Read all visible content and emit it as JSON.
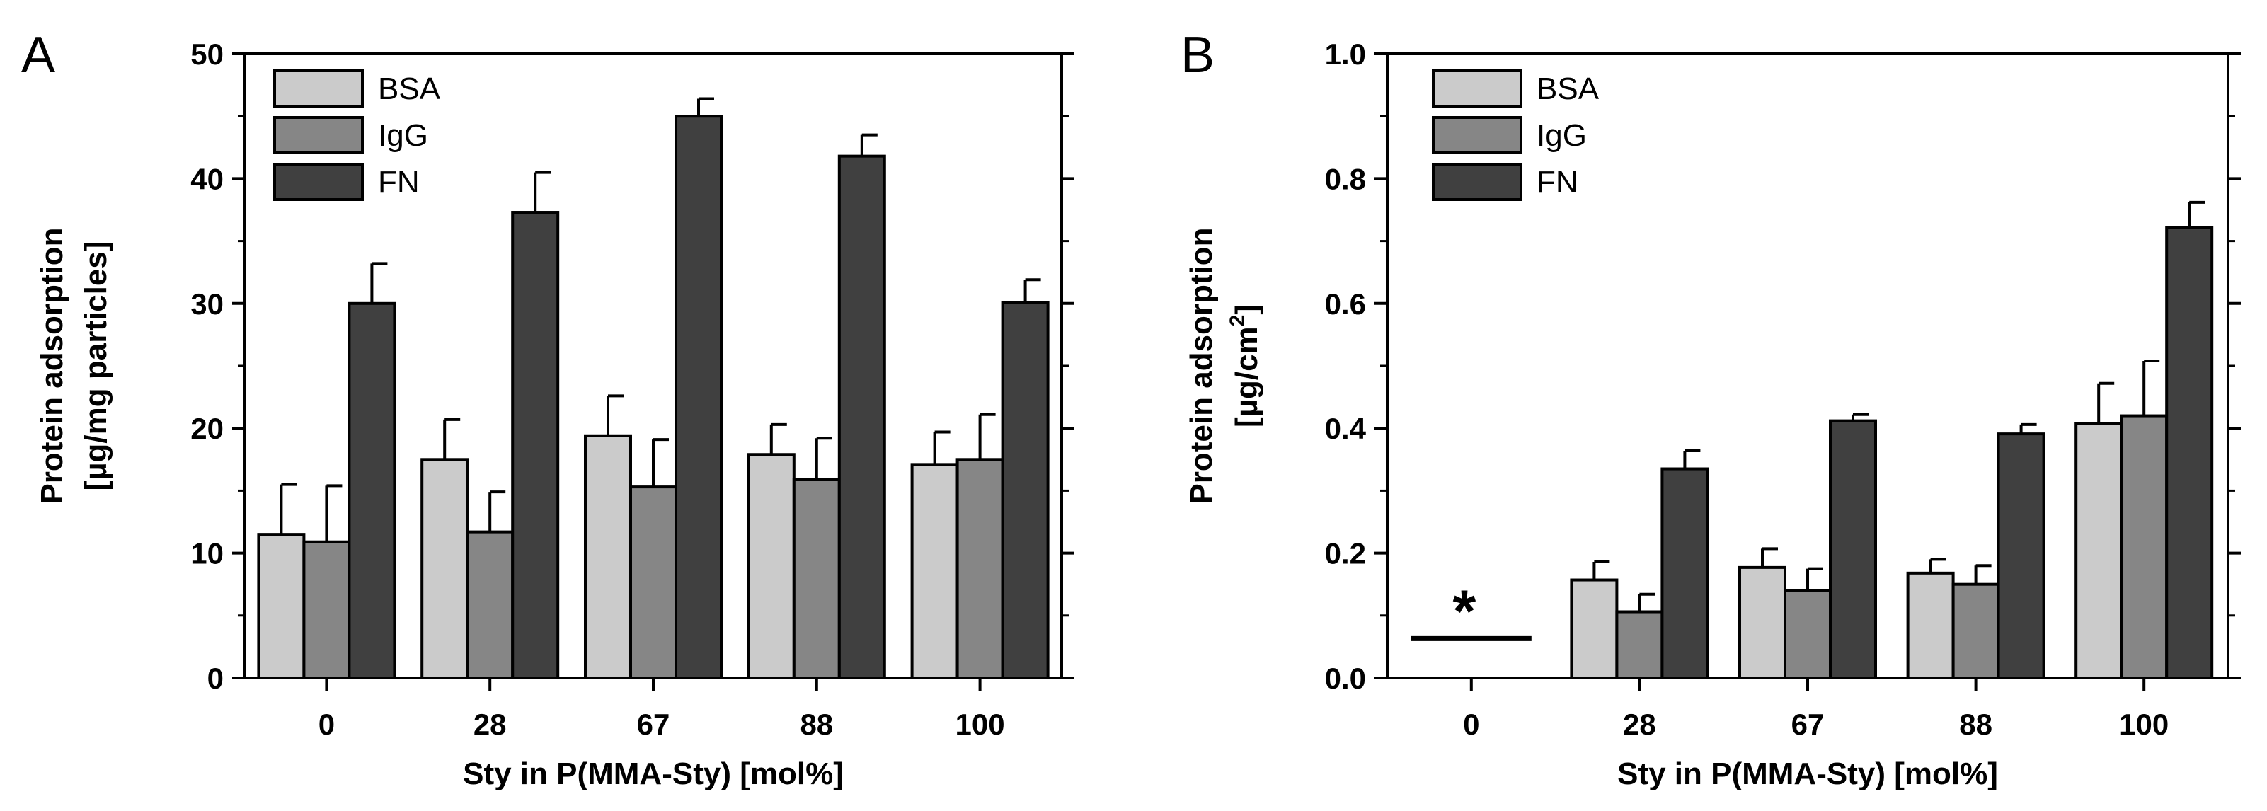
{
  "chart_data": [
    {
      "type": "bar",
      "panel_label": "A",
      "title": "",
      "xlabel": "Sty in P(MMA-Sty) [mol%]",
      "ylabel_lines": [
        "Protein adsorption",
        "[µg/mg particles]"
      ],
      "ylim": [
        0,
        50
      ],
      "yticks": [
        0,
        10,
        20,
        30,
        40,
        50
      ],
      "ytick_labels": [
        "0",
        "10",
        "20",
        "30",
        "40",
        "50"
      ],
      "categories": [
        "0",
        "28",
        "67",
        "88",
        "100"
      ],
      "series": [
        {
          "name": "BSA",
          "color": "#cbcbcb",
          "values": [
            11.5,
            17.5,
            19.4,
            17.9,
            17.1
          ],
          "errors": [
            4.0,
            3.2,
            3.2,
            2.4,
            2.6
          ]
        },
        {
          "name": "IgG",
          "color": "#868686",
          "values": [
            10.9,
            11.7,
            15.3,
            15.9,
            17.5
          ],
          "errors": [
            4.5,
            3.2,
            3.8,
            3.3,
            3.6
          ]
        },
        {
          "name": "FN",
          "color": "#404040",
          "values": [
            30.0,
            37.3,
            45.0,
            41.8,
            30.1
          ],
          "errors": [
            3.2,
            3.2,
            1.4,
            1.7,
            1.8
          ]
        }
      ],
      "legend": [
        "BSA",
        "IgG",
        "FN"
      ],
      "legend_position": "top-left"
    },
    {
      "type": "bar",
      "panel_label": "B",
      "title": "",
      "xlabel": "Sty in P(MMA-Sty) [mol%]",
      "ylabel_lines": [
        "Protein adsorption",
        "[µg/cm",
        "2",
        "]"
      ],
      "ylim": [
        0,
        1.0
      ],
      "yticks": [
        0,
        0.2,
        0.4,
        0.6,
        0.8,
        1.0
      ],
      "ytick_labels": [
        "0.0",
        "0.2",
        "0.4",
        "0.6",
        "0.8",
        "1.0"
      ],
      "categories": [
        "0",
        "28",
        "67",
        "88",
        "100"
      ],
      "series": [
        {
          "name": "BSA",
          "color": "#cbcbcb",
          "values": [
            null,
            0.157,
            0.177,
            0.168,
            0.408
          ],
          "errors": [
            null,
            0.029,
            0.03,
            0.022,
            0.064
          ]
        },
        {
          "name": "IgG",
          "color": "#868686",
          "values": [
            null,
            0.106,
            0.14,
            0.15,
            0.42
          ],
          "errors": [
            null,
            0.028,
            0.035,
            0.03,
            0.088
          ]
        },
        {
          "name": "FN",
          "color": "#404040",
          "values": [
            null,
            0.335,
            0.412,
            0.391,
            0.722
          ],
          "errors": [
            null,
            0.029,
            0.01,
            0.015,
            0.04
          ]
        }
      ],
      "legend": [
        "BSA",
        "IgG",
        "FN"
      ],
      "legend_position": "top-left",
      "annotation": {
        "category": "0",
        "text": "*",
        "baseline_value": 0.063
      }
    }
  ]
}
